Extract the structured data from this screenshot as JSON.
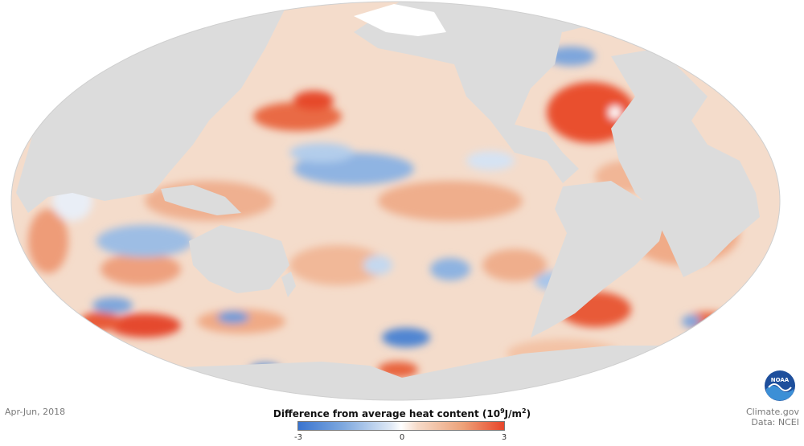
{
  "map": {
    "projection": "Mollweide, Pacific-centered",
    "variable": "ocean heat content anomaly",
    "land_color": "#dcdcdc",
    "ocean_base_color": "#f3d8c6"
  },
  "caption": {
    "date": "Apr-Jun, 2018"
  },
  "legend": {
    "title_main": "Difference from average heat content",
    "title_unit_prefix": "(10",
    "title_unit_exp": "9",
    "title_unit_mid": "J/m",
    "title_unit_exp2": "2",
    "title_unit_suffix": ")",
    "min_label": "-3",
    "mid_label": "0",
    "max_label": "3",
    "colors": {
      "low": "#3a74cf",
      "mid": "#ffffff",
      "high": "#e8452a"
    }
  },
  "credits": {
    "site": "Climate.gov",
    "data": "Data: NCEI",
    "logo_text": "NOAA"
  }
}
